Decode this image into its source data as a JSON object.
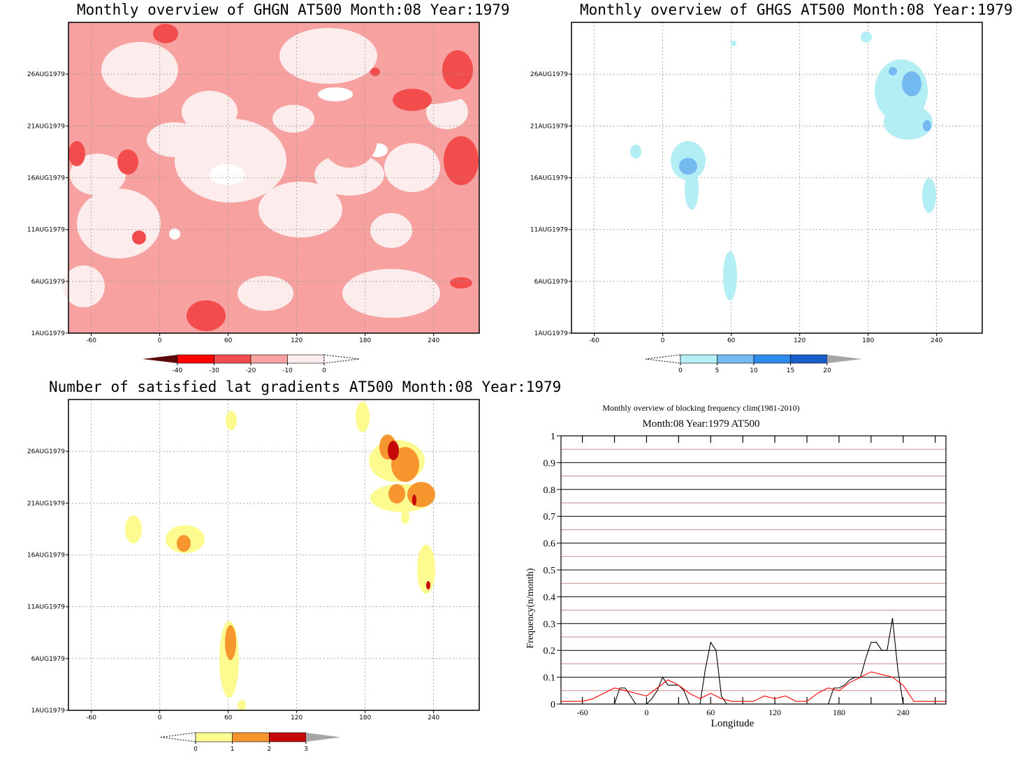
{
  "chart_data": [
    {
      "type": "heatmap",
      "title": "Monthly overview of GHGN AT500 Month:08 Year:1979",
      "x_ticks": [
        -60,
        0,
        60,
        120,
        180,
        240
      ],
      "y_ticks": [
        "1AUG1979",
        "6AUG1979",
        "11AUG1979",
        "16AUG1979",
        "21AUG1979",
        "26AUG1979"
      ],
      "xlim": [
        -80,
        280
      ],
      "ylim": [
        1,
        31
      ],
      "colorbar": {
        "labels": [
          "-40",
          "-30",
          "-20",
          "-10",
          "0"
        ],
        "colors": [
          "#5a0a0a",
          "#ff0000",
          "#f24c4c",
          "#f7a1a1",
          "#fdecec",
          "#ffffff"
        ]
      },
      "background_color": "#f7a1a1"
    },
    {
      "type": "heatmap",
      "title": "Monthly overview of GHGS AT500 Month:08 Year:1979",
      "x_ticks": [
        -60,
        0,
        60,
        120,
        180,
        240
      ],
      "y_ticks": [
        "1AUG1979",
        "6AUG1979",
        "11AUG1979",
        "16AUG1979",
        "21AUG1979",
        "26AUG1979"
      ],
      "xlim": [
        -80,
        280
      ],
      "ylim": [
        1,
        31
      ],
      "colorbar": {
        "labels": [
          "0",
          "5",
          "10",
          "15",
          "20"
        ],
        "colors": [
          "#ffffff",
          "#b4eef5",
          "#74b9ef",
          "#2e8bea",
          "#1a5fcc",
          "#a6a6a6"
        ]
      }
    },
    {
      "type": "heatmap",
      "title": "Number of satisfied lat gradients AT500 Month:08 Year:1979",
      "x_ticks": [
        -60,
        0,
        60,
        120,
        180,
        240
      ],
      "y_ticks": [
        "1AUG1979",
        "6AUG1979",
        "11AUG1979",
        "16AUG1979",
        "21AUG1979",
        "26AUG1979"
      ],
      "xlim": [
        -80,
        280
      ],
      "ylim": [
        1,
        31
      ],
      "colorbar": {
        "labels": [
          "0",
          "1",
          "2",
          "3"
        ],
        "colors": [
          "#ffffff",
          "#fdfb8f",
          "#f7952e",
          "#c60808",
          "#a6a6a6"
        ]
      }
    },
    {
      "type": "line",
      "title": "Monthly overview of blocking frequency clim(1981-2010)",
      "subtitle": "Month:08 Year:1979  AT500",
      "xlabel": "Longitude",
      "ylabel": "Frequency(n/month)",
      "xlim": [
        -80,
        280
      ],
      "ylim": [
        0,
        1
      ],
      "x_ticks": [
        -60,
        0,
        60,
        120,
        180,
        240
      ],
      "y_ticks": [
        "0",
        "0.1",
        "0.2",
        "0.3",
        "0.4",
        "0.5",
        "0.6",
        "0.7",
        "0.8",
        "0.9",
        "1"
      ],
      "grid": true,
      "series": [
        {
          "color": "#000000",
          "x": [
            -80,
            -30,
            -25,
            -20,
            -15,
            -10,
            -5,
            0,
            5,
            10,
            15,
            20,
            25,
            30,
            35,
            40,
            45,
            50,
            55,
            60,
            65,
            70,
            75,
            80,
            170,
            175,
            180,
            185,
            190,
            195,
            200,
            205,
            210,
            215,
            220,
            225,
            230,
            235,
            240,
            280
          ],
          "y": [
            0,
            0,
            0.06,
            0.06,
            0.03,
            0,
            0,
            0,
            0.02,
            0.05,
            0.1,
            0.07,
            0.07,
            0.07,
            0.05,
            0,
            0,
            0,
            0.13,
            0.23,
            0.2,
            0.03,
            0,
            0,
            0,
            0.06,
            0.06,
            0.07,
            0.09,
            0.1,
            0.1,
            0.17,
            0.23,
            0.23,
            0.2,
            0.2,
            0.32,
            0.13,
            0,
            0
          ]
        },
        {
          "color": "#ff0000",
          "x": [
            -80,
            -60,
            -50,
            -40,
            -30,
            -20,
            -10,
            0,
            10,
            20,
            30,
            40,
            50,
            60,
            70,
            80,
            90,
            100,
            110,
            120,
            130,
            140,
            150,
            160,
            170,
            180,
            190,
            200,
            210,
            220,
            230,
            240,
            250,
            260,
            270,
            280
          ],
          "y": [
            0.01,
            0.01,
            0.02,
            0.04,
            0.06,
            0.05,
            0.04,
            0.03,
            0.06,
            0.09,
            0.07,
            0.04,
            0.02,
            0.04,
            0.02,
            0.01,
            0.01,
            0.01,
            0.03,
            0.02,
            0.03,
            0.01,
            0.01,
            0.04,
            0.06,
            0.05,
            0.08,
            0.1,
            0.12,
            0.11,
            0.1,
            0.07,
            0.01,
            0.01,
            0.01,
            0.01
          ]
        }
      ]
    }
  ]
}
